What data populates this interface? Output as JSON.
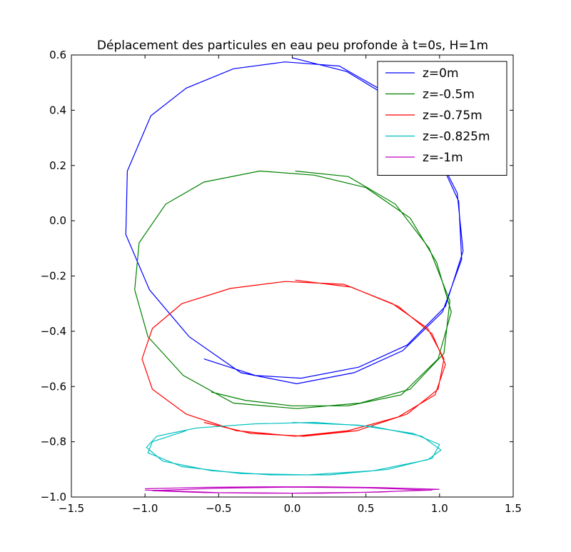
{
  "chart_data": {
    "type": "line",
    "title": "Déplacement des particules en eau peu profonde à t=0s, H=1m",
    "xlabel": "",
    "ylabel": "",
    "xlim": [
      -1.5,
      1.5
    ],
    "ylim": [
      -1.0,
      0.6
    ],
    "xticks": [
      -1.5,
      -1.0,
      -0.5,
      0.0,
      0.5,
      1.0,
      1.5
    ],
    "xtick_labels": [
      "−1.5",
      "−1.0",
      "−0.5",
      "0.0",
      "0.5",
      "1.0",
      "1.5"
    ],
    "yticks": [
      -1.0,
      -0.8,
      -0.6,
      -0.4,
      -0.2,
      0.0,
      0.2,
      0.4,
      0.6
    ],
    "ytick_labels": [
      "−1.0",
      "−0.8",
      "−0.6",
      "−0.4",
      "−0.2",
      "0.0",
      "0.2",
      "0.4",
      "0.6"
    ],
    "grid": false,
    "legend_position": "top-right",
    "series": [
      {
        "name": "z=0m",
        "color": "#0000ff",
        "points": [
          [
            0.0,
            0.59
          ],
          [
            0.37,
            0.54
          ],
          [
            0.68,
            0.44
          ],
          [
            0.95,
            0.28
          ],
          [
            1.13,
            0.07
          ],
          [
            1.15,
            -0.14
          ],
          [
            1.02,
            -0.33
          ],
          [
            0.75,
            -0.47
          ],
          [
            0.42,
            -0.55
          ],
          [
            0.03,
            -0.59
          ],
          [
            -0.35,
            -0.55
          ],
          [
            -0.7,
            -0.42
          ],
          [
            -0.97,
            -0.25
          ],
          [
            -1.13,
            -0.05
          ],
          [
            -1.12,
            0.18
          ],
          [
            -0.96,
            0.38
          ],
          [
            -0.72,
            0.48
          ],
          [
            -0.4,
            0.55
          ],
          [
            -0.05,
            0.575
          ],
          [
            0.32,
            0.56
          ],
          [
            0.65,
            0.46
          ],
          [
            0.93,
            0.3
          ],
          [
            1.12,
            0.1
          ],
          [
            1.16,
            -0.11
          ],
          [
            1.04,
            -0.31
          ],
          [
            0.78,
            -0.45
          ],
          [
            0.45,
            -0.53
          ],
          [
            0.06,
            -0.57
          ],
          [
            -0.25,
            -0.56
          ],
          [
            -0.6,
            -0.5
          ]
        ]
      },
      {
        "name": "z=-0.5m",
        "color": "#008000",
        "points": [
          [
            0.02,
            0.18
          ],
          [
            0.38,
            0.16
          ],
          [
            0.7,
            0.06
          ],
          [
            0.93,
            -0.1
          ],
          [
            1.07,
            -0.29
          ],
          [
            1.03,
            -0.48
          ],
          [
            0.8,
            -0.61
          ],
          [
            0.46,
            -0.66
          ],
          [
            0.03,
            -0.68
          ],
          [
            -0.4,
            -0.66
          ],
          [
            -0.74,
            -0.56
          ],
          [
            -0.98,
            -0.42
          ],
          [
            -1.07,
            -0.25
          ],
          [
            -1.04,
            -0.08
          ],
          [
            -0.86,
            0.06
          ],
          [
            -0.6,
            0.14
          ],
          [
            -0.22,
            0.18
          ],
          [
            0.15,
            0.165
          ],
          [
            0.5,
            0.12
          ],
          [
            0.8,
            0.01
          ],
          [
            0.98,
            -0.15
          ],
          [
            1.08,
            -0.33
          ],
          [
            0.99,
            -0.5
          ],
          [
            0.74,
            -0.63
          ],
          [
            0.38,
            -0.67
          ],
          [
            0.0,
            -0.67
          ],
          [
            -0.32,
            -0.65
          ],
          [
            -0.55,
            -0.62
          ]
        ]
      },
      {
        "name": "z=-0.75m",
        "color": "#ff0000",
        "points": [
          [
            0.02,
            -0.215
          ],
          [
            0.4,
            -0.24
          ],
          [
            0.72,
            -0.31
          ],
          [
            0.95,
            -0.41
          ],
          [
            1.04,
            -0.52
          ],
          [
            0.97,
            -0.63
          ],
          [
            0.72,
            -0.71
          ],
          [
            0.38,
            -0.76
          ],
          [
            0.02,
            -0.78
          ],
          [
            -0.38,
            -0.76
          ],
          [
            -0.72,
            -0.7
          ],
          [
            -0.95,
            -0.61
          ],
          [
            -1.02,
            -0.5
          ],
          [
            -0.95,
            -0.39
          ],
          [
            -0.75,
            -0.3
          ],
          [
            -0.42,
            -0.245
          ],
          [
            -0.05,
            -0.22
          ],
          [
            0.35,
            -0.23
          ],
          [
            0.68,
            -0.3
          ],
          [
            0.92,
            -0.39
          ],
          [
            1.03,
            -0.5
          ],
          [
            0.99,
            -0.61
          ],
          [
            0.78,
            -0.7
          ],
          [
            0.44,
            -0.76
          ],
          [
            0.08,
            -0.78
          ],
          [
            -0.28,
            -0.77
          ],
          [
            -0.6,
            -0.73
          ]
        ]
      },
      {
        "name": "z=-0.825m",
        "color": "#00bfbf",
        "points": [
          [
            0.0,
            -0.73
          ],
          [
            0.45,
            -0.74
          ],
          [
            0.82,
            -0.77
          ],
          [
            1.0,
            -0.81
          ],
          [
            0.95,
            -0.86
          ],
          [
            0.65,
            -0.9
          ],
          [
            0.25,
            -0.92
          ],
          [
            -0.15,
            -0.92
          ],
          [
            -0.55,
            -0.905
          ],
          [
            -0.88,
            -0.87
          ],
          [
            -0.99,
            -0.82
          ],
          [
            -0.92,
            -0.78
          ],
          [
            -0.65,
            -0.75
          ],
          [
            -0.25,
            -0.735
          ],
          [
            0.15,
            -0.73
          ],
          [
            0.55,
            -0.745
          ],
          [
            0.88,
            -0.78
          ],
          [
            1.01,
            -0.83
          ],
          [
            0.92,
            -0.865
          ],
          [
            0.55,
            -0.905
          ],
          [
            0.1,
            -0.92
          ],
          [
            -0.35,
            -0.915
          ],
          [
            -0.75,
            -0.89
          ],
          [
            -0.98,
            -0.84
          ],
          [
            -0.95,
            -0.8
          ],
          [
            -0.72,
            -0.76
          ]
        ]
      },
      {
        "name": "z=-1m",
        "color": "#bf00bf",
        "points": [
          [
            -1.0,
            -0.97
          ],
          [
            -0.6,
            -0.965
          ],
          [
            -0.2,
            -0.963
          ],
          [
            0.2,
            -0.963
          ],
          [
            0.6,
            -0.966
          ],
          [
            1.0,
            -0.972
          ],
          [
            0.6,
            -0.982
          ],
          [
            0.2,
            -0.986
          ],
          [
            -0.2,
            -0.986
          ],
          [
            -0.6,
            -0.984
          ],
          [
            -0.95,
            -0.977
          ],
          [
            -0.5,
            -0.968
          ],
          [
            0.0,
            -0.964
          ],
          [
            0.5,
            -0.967
          ],
          [
            0.95,
            -0.975
          ],
          [
            0.5,
            -0.983
          ],
          [
            0.0,
            -0.986
          ],
          [
            -0.5,
            -0.984
          ],
          [
            -1.0,
            -0.975
          ]
        ]
      }
    ]
  }
}
